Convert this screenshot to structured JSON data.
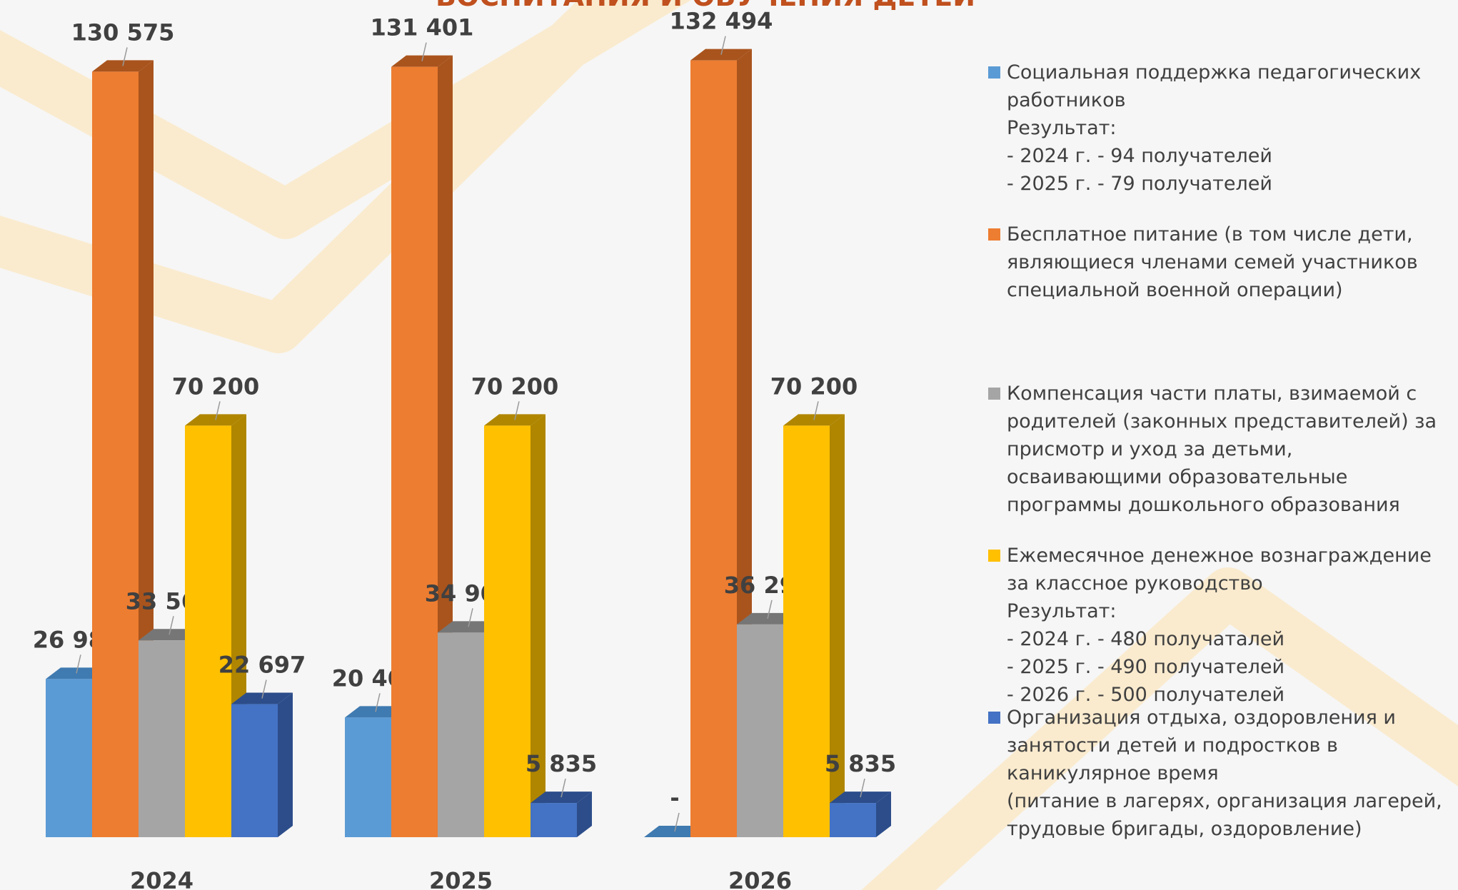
{
  "chart_data": {
    "type": "bar3d",
    "title": "ВОСПИТАНИЯ И ОБУЧЕНИЯ ДЕТЕЙ",
    "categories": [
      "2024",
      "2025",
      "2026"
    ],
    "ylim": [
      0,
      140000
    ],
    "series": [
      {
        "name": "Социальная поддержка педагогических работников",
        "details": [
          "Результат:",
          "- 2024 г. - 94 получателей",
          "- 2025 г. - 79 получателей"
        ],
        "color": "#5b9bd5",
        "side": "#3f7ab0",
        "values": [
          26980,
          20405,
          0
        ],
        "value_labels": [
          "26 980",
          "20 405",
          "-"
        ]
      },
      {
        "name": "Бесплатное питание (в том числе дети, являющиеся членами семей участников специальной военной операции)",
        "color": "#ed7d31",
        "side": "#a9541d",
        "values": [
          130575,
          131401,
          132494
        ],
        "value_labels": [
          "130 575",
          "131 401",
          "132 494"
        ]
      },
      {
        "name": "Компенсация части платы, взимаемой с родителей (законных представителей) за присмотр и уход за детьми, осваивающими образовательные программы дошкольного образования",
        "color": "#a5a5a5",
        "side": "#767676",
        "values": [
          33565,
          34900,
          36297
        ],
        "value_labels": [
          "33 565",
          "34 900",
          "36 297"
        ]
      },
      {
        "name": "Ежемесячное денежное вознаграждение за классное руководство",
        "details": [
          "Результат:",
          "- 2024 г. - 480 получаталей",
          "- 2025 г. - 490 получателей",
          "- 2026 г. - 500 получателей"
        ],
        "color": "#ffc000",
        "side": "#b08600",
        "values": [
          70200,
          70200,
          70200
        ],
        "value_labels": [
          "70 200",
          "70 200",
          "70 200"
        ]
      },
      {
        "name": "Организация отдыха, оздоровления и занятости детей и подростков в каникулярное время",
        "details": [
          "(питание в лагерях, организация лагерей, трудовые бригады, оздоровление)"
        ],
        "color": "#4472c4",
        "side": "#2c4d8a",
        "values": [
          22697,
          5835,
          5835
        ],
        "value_labels": [
          "22 697",
          "5 835",
          "5 835"
        ]
      }
    ]
  }
}
